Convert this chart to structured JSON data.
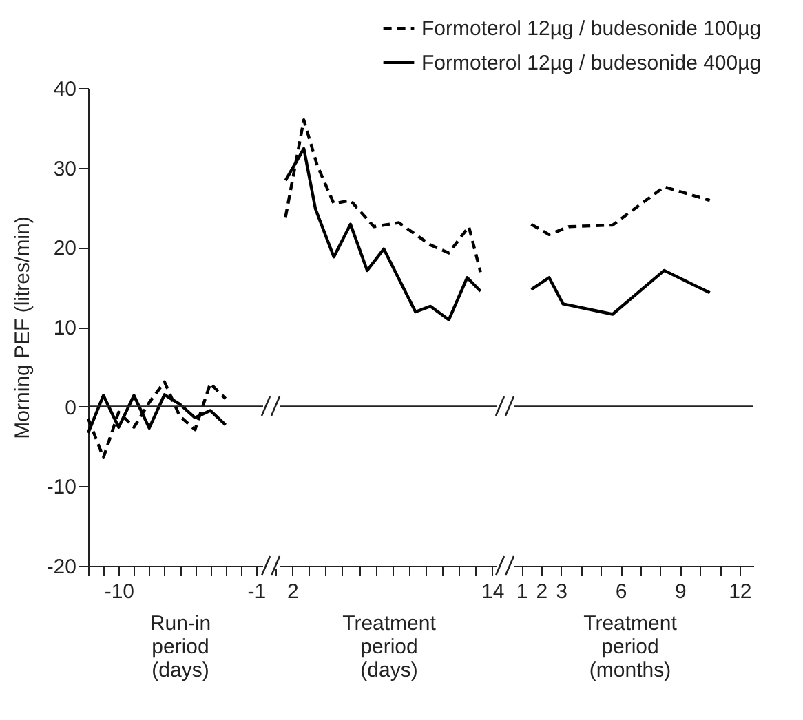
{
  "chart_data": [
    {
      "type": "line",
      "xlabel": "Run-in\nperiod\n(days)",
      "ylabel": "Morning PEF (litres/min)",
      "xlim": [
        -12,
        0
      ],
      "xticks": [
        {
          "value": -12,
          "label": null
        },
        {
          "value": -11,
          "label": null
        },
        -10,
        {
          "value": -9,
          "label": null
        },
        {
          "value": -8,
          "label": null
        },
        {
          "value": -7,
          "label": null
        },
        {
          "value": -6,
          "label": null
        },
        {
          "value": -5,
          "label": null
        },
        {
          "value": -4,
          "label": null
        },
        {
          "value": -3,
          "label": null
        },
        {
          "value": -2,
          "label": null
        },
        -1
      ],
      "ylim": [
        -20,
        40
      ],
      "yticks": [
        -20,
        -10,
        0,
        10,
        20,
        30,
        40
      ],
      "grid": false,
      "marker": "none",
      "ref_lines": [
        {
          "axis": "y",
          "value": 0
        }
      ],
      "series": [
        {
          "color": "#000000",
          "line_style": "dashed",
          "x": [
            -12,
            -11,
            -10,
            -9,
            -8,
            -7,
            -6,
            -5,
            -4,
            -3
          ],
          "values": [
            -1.5,
            -6.4,
            -0.7,
            -2.6,
            0.5,
            3.1,
            -1.2,
            -2.9,
            2.9,
            1.0
          ]
        },
        {
          "color": "#000000",
          "line_style": "solid",
          "x": [
            -12,
            -11,
            -10,
            -9,
            -8,
            -7,
            -6,
            -5,
            -4,
            -3
          ],
          "values": [
            -3.3,
            1.4,
            -2.6,
            1.4,
            -2.7,
            1.5,
            0.3,
            -1.4,
            -0.5,
            -2.3
          ]
        }
      ]
    },
    {
      "type": "line",
      "xlabel": "Treatment\nperiod\n(days)",
      "xlim": [
        0.75,
        14.8
      ],
      "xticks": [
        {
          "value": 1,
          "label": null
        },
        2,
        {
          "value": 3,
          "label": null
        },
        {
          "value": 4,
          "label": null
        },
        {
          "value": 5,
          "label": null
        },
        {
          "value": 6,
          "label": null
        },
        {
          "value": 7,
          "label": null
        },
        {
          "value": 8,
          "label": null
        },
        {
          "value": 9,
          "label": null
        },
        {
          "value": 10,
          "label": null
        },
        {
          "value": 11,
          "label": null
        },
        {
          "value": 12,
          "label": null
        },
        {
          "value": 13,
          "label": null
        },
        14
      ],
      "ylim": [
        -20,
        40
      ],
      "tick_labels": "x",
      "grid": false,
      "marker": "none",
      "legend": "top right",
      "ref_lines": [
        {
          "axis": "y",
          "value": 0
        }
      ],
      "series": [
        {
          "name": "Formoterol 12µg / budesonide 100µg",
          "color": "#000000",
          "line_style": "dashed",
          "x": [
            1.6,
            2.7,
            3.5,
            4.5,
            5.5,
            6.9,
            8.4,
            10.3,
            11.4,
            12.6,
            13.3
          ],
          "values": [
            23.8,
            36.0,
            30.3,
            25.5,
            25.9,
            22.6,
            23.1,
            20.3,
            19.3,
            22.6,
            16.9
          ]
        },
        {
          "name": "Formoterol 12µg / budesonide 400µg",
          "color": "#000000",
          "line_style": "solid",
          "x": [
            1.6,
            2.7,
            3.4,
            4.5,
            5.5,
            6.5,
            7.5,
            9.4,
            10.3,
            11.4,
            12.5,
            13.3
          ],
          "values": [
            28.4,
            32.4,
            24.8,
            18.8,
            22.9,
            17.1,
            19.8,
            11.9,
            12.6,
            10.9,
            16.2,
            14.5
          ]
        }
      ]
    },
    {
      "type": "line",
      "xlabel": "Treatment\nperiod\n(months)",
      "xlim": [
        0.2,
        12.7
      ],
      "xticks": [
        1,
        2,
        3,
        {
          "value": 4,
          "label": null
        },
        {
          "value": 5,
          "label": null
        },
        6,
        {
          "value": 7,
          "label": null
        },
        {
          "value": 8,
          "label": null
        },
        9,
        {
          "value": 10,
          "label": null
        },
        {
          "value": 11,
          "label": null
        },
        12
      ],
      "ylim": [
        -20,
        40
      ],
      "tick_labels": "x",
      "grid": false,
      "marker": "none",
      "ref_lines": [
        {
          "axis": "y",
          "value": 0
        }
      ],
      "series": [
        {
          "color": "#000000",
          "line_style": "dashed",
          "x": [
            1.5,
            2.4,
            3.4,
            5.6,
            8.2,
            10.5
          ],
          "values": [
            22.9,
            21.6,
            22.6,
            22.8,
            27.6,
            25.9
          ]
        },
        {
          "color": "#000000",
          "line_style": "solid",
          "x": [
            1.5,
            2.4,
            3.1,
            5.6,
            8.2,
            10.5
          ],
          "values": [
            14.7,
            16.2,
            12.9,
            11.6,
            17.1,
            14.3
          ]
        }
      ]
    }
  ]
}
